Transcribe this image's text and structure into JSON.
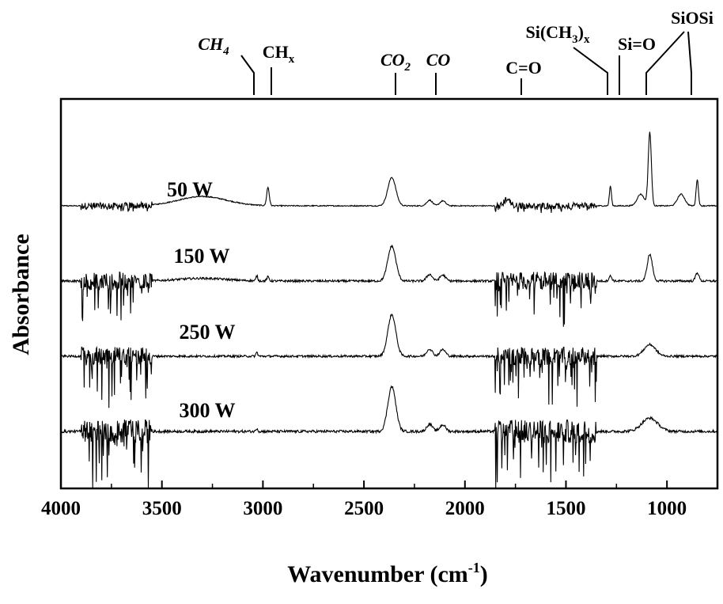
{
  "chart_data": {
    "type": "line",
    "xlabel": "Wavenumber (cm",
    "xlabel_sup": "-1",
    "xlabel_close": ")",
    "ylabel": "Absorbance",
    "xlim": [
      4000,
      750
    ],
    "x_reversed": true,
    "x_ticks": [
      4000,
      3500,
      3000,
      2500,
      2000,
      1500,
      1000
    ],
    "grid": false,
    "series": [
      {
        "name": "50 W",
        "baseline": 0.78,
        "noise": 0.35,
        "features": [
          {
            "x": 3300,
            "h": 0.28,
            "w": 170
          },
          {
            "x": 2975,
            "h": 0.55,
            "w": 9
          },
          {
            "x": 2362,
            "h": 0.85,
            "w": 28
          },
          {
            "x": 2175,
            "h": 0.17,
            "w": 20
          },
          {
            "x": 2110,
            "h": 0.15,
            "w": 20
          },
          {
            "x": 1790,
            "h": 0.22,
            "w": 20
          },
          {
            "x": 1280,
            "h": 0.6,
            "w": 7
          },
          {
            "x": 1130,
            "h": 0.35,
            "w": 25
          },
          {
            "x": 1085,
            "h": 2.2,
            "w": 11
          },
          {
            "x": 930,
            "h": 0.35,
            "w": 25
          },
          {
            "x": 850,
            "h": 0.8,
            "w": 8
          }
        ]
      },
      {
        "name": "150 W",
        "baseline": 0.55,
        "noise": 1.0,
        "features": [
          {
            "x": 3300,
            "h": 0.08,
            "w": 170
          },
          {
            "x": 3030,
            "h": 0.15,
            "w": 6
          },
          {
            "x": 2975,
            "h": 0.12,
            "w": 8
          },
          {
            "x": 2362,
            "h": 1.05,
            "w": 28
          },
          {
            "x": 2175,
            "h": 0.2,
            "w": 20
          },
          {
            "x": 2110,
            "h": 0.18,
            "w": 20
          },
          {
            "x": 1280,
            "h": 0.15,
            "w": 10
          },
          {
            "x": 1085,
            "h": 0.8,
            "w": 18
          },
          {
            "x": 850,
            "h": 0.25,
            "w": 12
          }
        ]
      },
      {
        "name": "250 W",
        "baseline": 0.35,
        "noise": 1.0,
        "features": [
          {
            "x": 3030,
            "h": 0.12,
            "w": 6
          },
          {
            "x": 2362,
            "h": 1.25,
            "w": 28
          },
          {
            "x": 2175,
            "h": 0.22,
            "w": 20
          },
          {
            "x": 2110,
            "h": 0.2,
            "w": 20
          },
          {
            "x": 1085,
            "h": 0.35,
            "w": 40
          }
        ]
      },
      {
        "name": "300 W",
        "baseline": 0.1,
        "noise": 1.3,
        "features": [
          {
            "x": 3030,
            "h": 0.1,
            "w": 6
          },
          {
            "x": 2362,
            "h": 1.35,
            "w": 28
          },
          {
            "x": 2175,
            "h": 0.22,
            "w": 20
          },
          {
            "x": 2110,
            "h": 0.2,
            "w": 20
          },
          {
            "x": 1085,
            "h": 0.4,
            "w": 55
          }
        ]
      }
    ],
    "noise_bands": [
      {
        "from": 3900,
        "to": 3550
      },
      {
        "from": 1850,
        "to": 1350
      }
    ],
    "annotations": [
      {
        "text": "CH",
        "sub": "4",
        "style": "italic",
        "x": [
          3030
        ]
      },
      {
        "text": "CH",
        "sub": "x",
        "style": "normal",
        "x": [
          2960
        ]
      },
      {
        "text": "CO",
        "sub": "2",
        "style": "italic",
        "x": [
          2340
        ]
      },
      {
        "text": "CO",
        "sub": "",
        "style": "italic",
        "x": [
          2140
        ]
      },
      {
        "text": "C=O",
        "sub": "",
        "style": "bold",
        "x": [
          1720
        ]
      },
      {
        "text": "Si(CH",
        "sub": "3",
        "tail": ")",
        "sub2": "x",
        "style": "normal",
        "x": [
          1280
        ]
      },
      {
        "text": "Si=O",
        "sub": "",
        "style": "bold",
        "x": [
          1240
        ]
      },
      {
        "text": "SiOSi",
        "sub": "",
        "style": "bold",
        "x": [
          1085,
          870
        ]
      }
    ]
  }
}
